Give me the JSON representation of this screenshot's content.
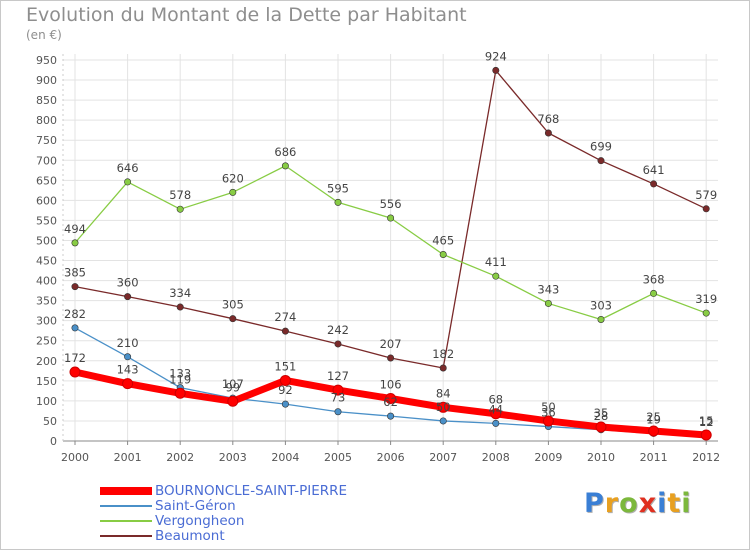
{
  "title": "Evolution du Montant de la Dette par Habitant",
  "unit_label": "(en €)",
  "logo": {
    "text": "Proxiti",
    "letters": [
      {
        "ch": "P",
        "color": "#3a7fd5"
      },
      {
        "ch": "r",
        "color": "#e8a020"
      },
      {
        "ch": "o",
        "color": "#7cb83c"
      },
      {
        "ch": "x",
        "color": "#e03020"
      },
      {
        "ch": "i",
        "color": "#3a7fd5"
      },
      {
        "ch": "t",
        "color": "#e8a020"
      },
      {
        "ch": "i",
        "color": "#7cb83c"
      }
    ]
  },
  "chart_data": {
    "type": "line",
    "x": [
      "2000",
      "2001",
      "2002",
      "2003",
      "2004",
      "2005",
      "2006",
      "2007",
      "2008",
      "2009",
      "2010",
      "2011",
      "2012"
    ],
    "ylim": [
      0,
      950
    ],
    "yticks": [
      0,
      50,
      100,
      150,
      200,
      250,
      300,
      350,
      400,
      450,
      500,
      550,
      600,
      650,
      700,
      750,
      800,
      850,
      900,
      950
    ],
    "grid": true,
    "legend_position": "bottom-left",
    "series": [
      {
        "name": "BOURNONCLE-SAINT-PIERRE",
        "color": "#ff0000",
        "values": [
          172,
          143,
          119,
          99,
          151,
          127,
          106,
          84,
          68,
          50,
          35,
          25,
          15
        ]
      },
      {
        "name": "Saint-Géron",
        "color": "#4a90c8",
        "values": [
          282,
          210,
          133,
          107,
          92,
          73,
          62,
          50,
          44,
          36,
          28,
          19,
          12
        ]
      },
      {
        "name": "Vergongheon",
        "color": "#88cc44",
        "values": [
          494,
          646,
          578,
          620,
          686,
          595,
          556,
          465,
          411,
          343,
          303,
          368,
          319
        ]
      },
      {
        "name": "Beaumont",
        "color": "#7a2a2a",
        "values": [
          385,
          360,
          334,
          305,
          274,
          242,
          207,
          182,
          924,
          768,
          699,
          641,
          579
        ]
      }
    ]
  }
}
